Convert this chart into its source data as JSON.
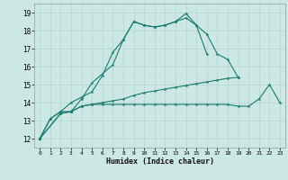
{
  "xlabel": "Humidex (Indice chaleur)",
  "bg_color": "#cce8e4",
  "grid_color": "#b8d8d4",
  "line_color": "#1a7a6e",
  "ylim": [
    11.5,
    19.5
  ],
  "yticks": [
    12,
    13,
    14,
    15,
    16,
    17,
    18,
    19
  ],
  "xlim": [
    -0.5,
    23.5
  ],
  "xticks": [
    0,
    1,
    2,
    3,
    4,
    5,
    6,
    7,
    8,
    9,
    10,
    11,
    12,
    13,
    14,
    15,
    16,
    17,
    18,
    19,
    20,
    21,
    22,
    23
  ],
  "s1_x": [
    0,
    1,
    2,
    3,
    4,
    5,
    7,
    8,
    9,
    10,
    11,
    12,
    13,
    14,
    15,
    16,
    17,
    18,
    19
  ],
  "s1_y": [
    12.0,
    13.1,
    13.5,
    13.5,
    14.2,
    15.1,
    16.1,
    17.5,
    18.5,
    18.3,
    18.2,
    18.3,
    18.5,
    18.95,
    18.3,
    17.8,
    16.7,
    16.4,
    15.4
  ],
  "s2_x": [
    0,
    1,
    2,
    3,
    4,
    5,
    6,
    7,
    8,
    9,
    10,
    11,
    12,
    13,
    14,
    15,
    16
  ],
  "s2_y": [
    12.0,
    13.1,
    13.5,
    14.0,
    14.3,
    14.6,
    15.5,
    16.8,
    17.5,
    18.5,
    18.3,
    18.2,
    18.3,
    18.5,
    18.7,
    18.3,
    16.7
  ],
  "s3_x": [
    0,
    2,
    3,
    4,
    5,
    6,
    7,
    8,
    9,
    10,
    11,
    12,
    13,
    14,
    15,
    16,
    17,
    18,
    19,
    20,
    21,
    22,
    23
  ],
  "s3_y": [
    12.0,
    13.4,
    13.5,
    13.8,
    13.9,
    13.9,
    13.9,
    13.9,
    13.9,
    13.9,
    13.9,
    13.9,
    13.9,
    13.9,
    13.9,
    13.9,
    13.9,
    13.9,
    13.8,
    13.8,
    14.2,
    15.0,
    14.0
  ],
  "s4_x": [
    0,
    2,
    3,
    4,
    5,
    6,
    7,
    8,
    9,
    10,
    11,
    12,
    13,
    14,
    15,
    16,
    17,
    18,
    19
  ],
  "s4_y": [
    12.0,
    13.4,
    13.5,
    13.8,
    13.9,
    14.0,
    14.1,
    14.2,
    14.4,
    14.55,
    14.65,
    14.75,
    14.85,
    14.95,
    15.05,
    15.15,
    15.25,
    15.35,
    15.4
  ]
}
